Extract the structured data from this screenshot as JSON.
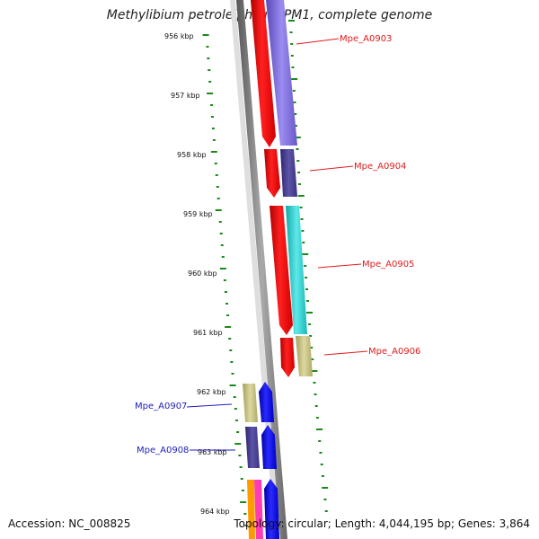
{
  "title": "Methylibium petroleiphilum PM1, complete genome",
  "accession_text": "Accession: NC_008825",
  "topology_text": "Topology: circular; Length: 4,044,195 bp; Genes: 3,864",
  "ticks": [
    "956 kbp",
    "957 kbp",
    "958 kbp",
    "959 kbp",
    "960 kbp",
    "961 kbp",
    "962 kbp",
    "963 kbp",
    "964 kbp"
  ],
  "genes": [
    {
      "label": "Mpe_A0903",
      "color": "#e21b1b"
    },
    {
      "label": "Mpe_A0904",
      "color": "#e21b1b"
    },
    {
      "label": "Mpe_A0905",
      "color": "#e21b1b"
    },
    {
      "label": "Mpe_A0906",
      "color": "#e21b1b"
    },
    {
      "label": "Mpe_A0907",
      "color": "#1d1dbf"
    },
    {
      "label": "Mpe_A0908",
      "color": "#1d1dbf"
    }
  ],
  "colors": {
    "forward_strand": "#ff0000",
    "reverse_strand": "#0000ff",
    "backbone": "#777777",
    "tick_marks": "#1a8a1a",
    "cog_purple": "#7b68d8",
    "cog_darkblue": "#483d8b",
    "cog_cyan": "#20c8c8",
    "cog_khaki": "#c8c080",
    "cog_orange": "#ff9a00",
    "cog_pink": "#ff3cb4"
  }
}
